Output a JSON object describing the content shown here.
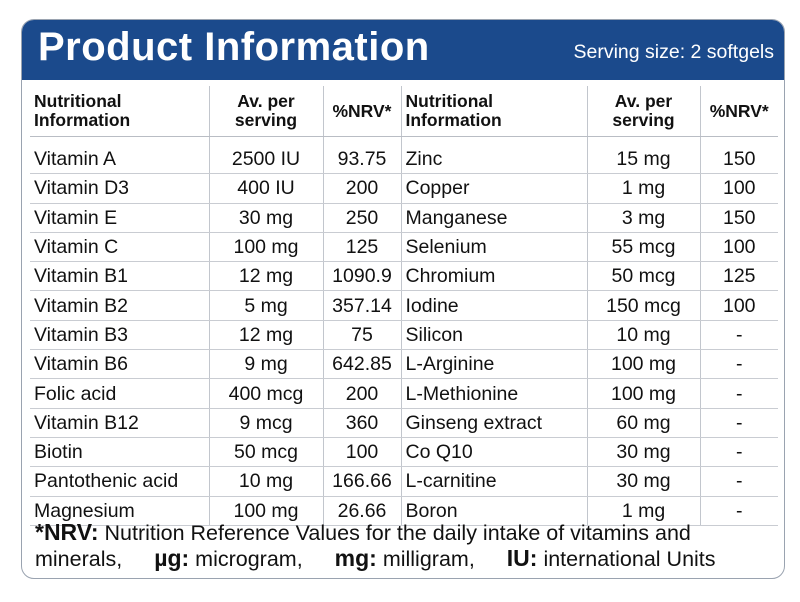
{
  "header": {
    "title": "Product Information",
    "serving": "Serving size: 2 softgels"
  },
  "columns": {
    "nutritional": "Nutritional Information",
    "av_per": "Av. per serving",
    "nrv": "%NRV*"
  },
  "left_rows": [
    {
      "name": "Vitamin A",
      "amount": "2500 IU",
      "nrv": "93.75"
    },
    {
      "name": "Vitamin D3",
      "amount": "400 IU",
      "nrv": "200"
    },
    {
      "name": "Vitamin E",
      "amount": "30 mg",
      "nrv": "250"
    },
    {
      "name": "Vitamin C",
      "amount": "100 mg",
      "nrv": "125"
    },
    {
      "name": "Vitamin B1",
      "amount": "12 mg",
      "nrv": "1090.9"
    },
    {
      "name": "Vitamin B2",
      "amount": "5 mg",
      "nrv": "357.14"
    },
    {
      "name": "Vitamin B3",
      "amount": "12 mg",
      "nrv": "75"
    },
    {
      "name": "Vitamin B6",
      "amount": "9 mg",
      "nrv": "642.85"
    },
    {
      "name": "Folic acid",
      "amount": "400 mcg",
      "nrv": "200"
    },
    {
      "name": "Vitamin B12",
      "amount": "9 mcg",
      "nrv": "360"
    },
    {
      "name": "Biotin",
      "amount": "50 mcg",
      "nrv": "100"
    },
    {
      "name": "Pantothenic acid",
      "amount": "10 mg",
      "nrv": "166.66"
    },
    {
      "name": "Magnesium",
      "amount": "100 mg",
      "nrv": "26.66"
    }
  ],
  "right_rows": [
    {
      "name": "Zinc",
      "amount": "15 mg",
      "nrv": "150"
    },
    {
      "name": "Copper",
      "amount": "1 mg",
      "nrv": "100"
    },
    {
      "name": "Manganese",
      "amount": "3 mg",
      "nrv": "150"
    },
    {
      "name": "Selenium",
      "amount": "55 mcg",
      "nrv": "100"
    },
    {
      "name": "Chromium",
      "amount": "50 mcg",
      "nrv": "125"
    },
    {
      "name": "Iodine",
      "amount": "150 mcg",
      "nrv": "100"
    },
    {
      "name": "Silicon",
      "amount": "10 mg",
      "nrv": "-"
    },
    {
      "name": "L-Arginine",
      "amount": "100 mg",
      "nrv": "-"
    },
    {
      "name": "L-Methionine",
      "amount": "100 mg",
      "nrv": "-"
    },
    {
      "name": "Ginseng extract",
      "amount": "60 mg",
      "nrv": "-"
    },
    {
      "name": "Co Q10",
      "amount": "30 mg",
      "nrv": "-"
    },
    {
      "name": "L-carnitine",
      "amount": "30 mg",
      "nrv": "-"
    },
    {
      "name": "Boron",
      "amount": "1 mg",
      "nrv": "-"
    }
  ],
  "footer": {
    "nrv_term": "*NRV:",
    "nrv_text": "Nutrition Reference Values for the daily intake of vitamins and",
    "line2_start": "minerals,",
    "ug_term": "µg:",
    "ug_text": "microgram,",
    "mg_term": "mg:",
    "mg_text": "milligram,",
    "iu_term": "IU:",
    "iu_text": "international Units"
  },
  "colors": {
    "header_bg": "#1b4a8c",
    "header_text": "#ffffff",
    "panel_border": "#9aa3b0"
  }
}
